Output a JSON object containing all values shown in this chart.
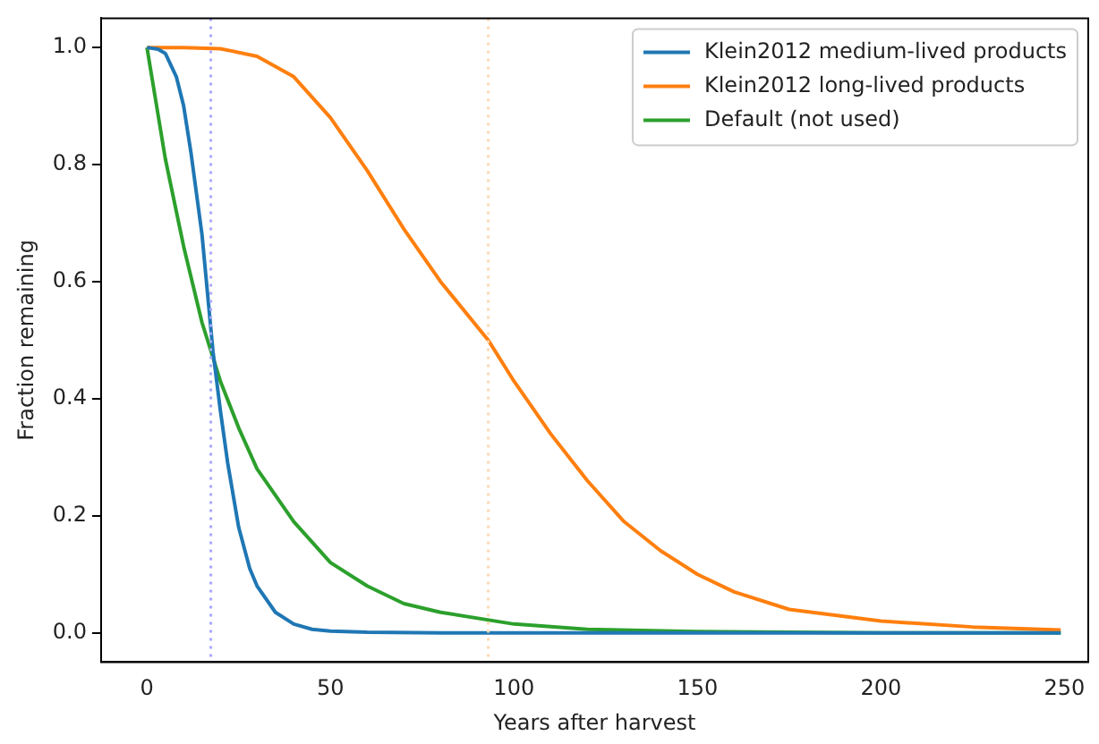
{
  "chart_data": {
    "type": "line",
    "xlabel": "Years after harvest",
    "ylabel": "Fraction remaining",
    "xlim": [
      -12.5,
      256.5
    ],
    "ylim": [
      -0.05,
      1.05
    ],
    "xticks": [
      0,
      50,
      100,
      150,
      200,
      250
    ],
    "yticks": [
      {
        "value": 0,
        "label": "0.0"
      },
      0.2,
      0.4,
      0.6,
      0.8,
      {
        "value": 1,
        "label": "1.0"
      }
    ],
    "legend": "top right",
    "grid": false,
    "marker": "none",
    "line_style": "solid",
    "ref_lines": [
      {
        "axis": "x",
        "value": 17.4,
        "label": null,
        "color": "#a8a8ff",
        "line_style": "dotted"
      },
      {
        "axis": "x",
        "value": 93,
        "label": null,
        "color": "#ffd8b0",
        "line_style": "dotted"
      }
    ],
    "series": [
      {
        "name": "Klein2012 medium-lived products",
        "color": "#1f77b4",
        "x": [
          0,
          3,
          5,
          8,
          10,
          12,
          15,
          18,
          20,
          22,
          25,
          28,
          30,
          35,
          40,
          45,
          50,
          60,
          80,
          150,
          249
        ],
        "values": [
          1,
          0.997,
          0.99,
          0.95,
          0.9,
          0.82,
          0.68,
          0.48,
          0.38,
          0.29,
          0.18,
          0.11,
          0.08,
          0.035,
          0.015,
          0.006,
          0.003,
          0.001,
          0,
          0,
          0
        ]
      },
      {
        "name": "Klein2012 long-lived products",
        "color": "#ff7f0e",
        "x": [
          0,
          10,
          20,
          30,
          40,
          50,
          60,
          70,
          80,
          93,
          100,
          110,
          120,
          130,
          140,
          150,
          160,
          175,
          200,
          225,
          249
        ],
        "values": [
          1,
          1,
          0.998,
          0.985,
          0.95,
          0.88,
          0.79,
          0.69,
          0.6,
          0.5,
          0.43,
          0.34,
          0.26,
          0.19,
          0.14,
          0.1,
          0.07,
          0.04,
          0.02,
          0.01,
          0.005
        ]
      },
      {
        "name": "Default (not used)",
        "color": "#2ca02c",
        "x": [
          0,
          5,
          10,
          15,
          20,
          25,
          30,
          40,
          50,
          60,
          70,
          80,
          100,
          120,
          150,
          200,
          249
        ],
        "values": [
          1,
          0.81,
          0.66,
          0.53,
          0.43,
          0.35,
          0.28,
          0.19,
          0.12,
          0.08,
          0.05,
          0.035,
          0.015,
          0.006,
          0.002,
          0,
          0
        ]
      }
    ]
  }
}
